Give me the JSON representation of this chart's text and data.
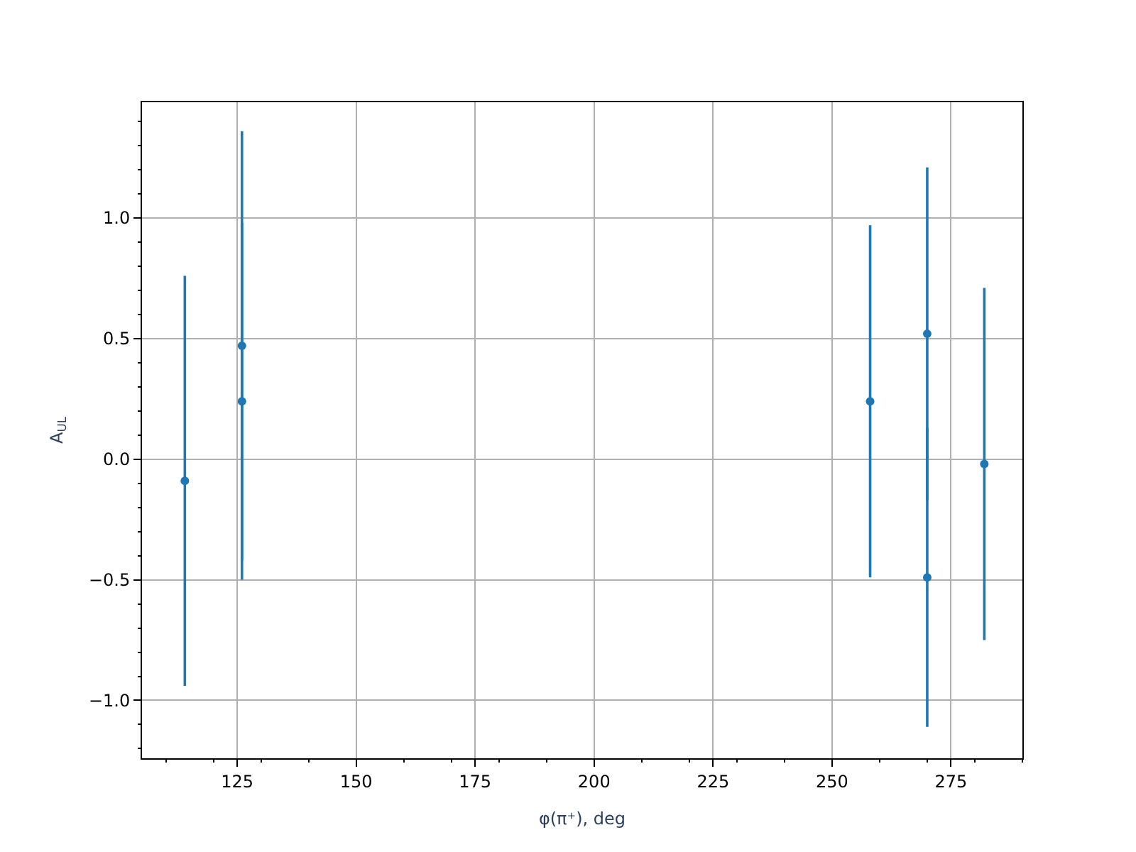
{
  "chart_data": {
    "type": "scatter",
    "xlabel": "φ(π⁺), deg",
    "ylabel": "A$_{UL}$",
    "x": [
      114,
      126,
      126,
      258,
      270,
      270,
      282
    ],
    "series": [
      {
        "color": "#1f77b4",
        "values": [
          -0.09,
          0.47,
          0.24,
          0.24,
          0.52,
          -0.49,
          -0.02
        ],
        "errors": [
          0.85,
          0.89,
          0.74,
          0.73,
          0.69,
          0.62,
          0.73
        ]
      }
    ],
    "xlim": [
      105,
      290
    ],
    "ylim": [
      -1.24,
      1.48
    ],
    "xticks": [
      125,
      150,
      175,
      200,
      225,
      250,
      275
    ],
    "yticks": [
      {
        "value": -1.0,
        "label": "−1.0"
      },
      {
        "value": -0.5,
        "label": "−0.5"
      },
      {
        "value": 0.0,
        "label": "0.0"
      },
      {
        "value": 0.5,
        "label": "0.5"
      },
      {
        "value": 1.0,
        "label": "1.0"
      }
    ],
    "grid": true,
    "marker": "circle"
  }
}
